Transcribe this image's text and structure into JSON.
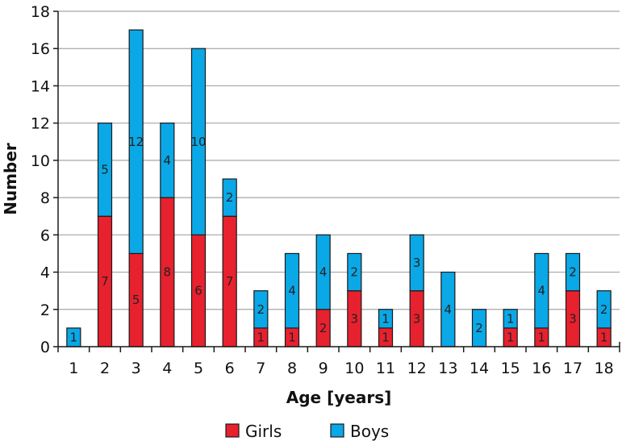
{
  "chart_data": {
    "type": "bar",
    "stacked": true,
    "title": "",
    "xlabel": "Age [years]",
    "ylabel": "Number",
    "ylim": [
      0,
      18
    ],
    "yticks": [
      "0",
      "2",
      "4",
      "6",
      "8",
      "10",
      "12",
      "14",
      "16",
      "18"
    ],
    "grid": true,
    "legend_position": "bottom",
    "categories": [
      "1",
      "2",
      "3",
      "4",
      "5",
      "6",
      "7",
      "8",
      "9",
      "10",
      "11",
      "12",
      "13",
      "14",
      "15",
      "16",
      "17",
      "18"
    ],
    "series": [
      {
        "name": "Girls",
        "color": "#e8212e",
        "values": [
          0,
          7,
          5,
          8,
          6,
          7,
          1,
          1,
          2,
          3,
          1,
          3,
          0,
          0,
          1,
          1,
          3,
          1
        ],
        "labels": [
          "",
          "7",
          "5",
          "8",
          "6",
          "7",
          "1",
          "1",
          "2",
          "3",
          "1",
          "3",
          "",
          "",
          "1",
          "1",
          "3",
          "1"
        ]
      },
      {
        "name": "Boys",
        "color": "#0aa8e6",
        "values": [
          1,
          5,
          12,
          4,
          10,
          2,
          2,
          4,
          4,
          2,
          1,
          3,
          4,
          2,
          1,
          4,
          2,
          2
        ],
        "labels": [
          "1",
          "5",
          "12",
          "4",
          "10",
          "2",
          "2",
          "4",
          "4",
          "2",
          "1",
          "3",
          "4",
          "2",
          "1",
          "4",
          "2",
          "2"
        ]
      }
    ]
  }
}
